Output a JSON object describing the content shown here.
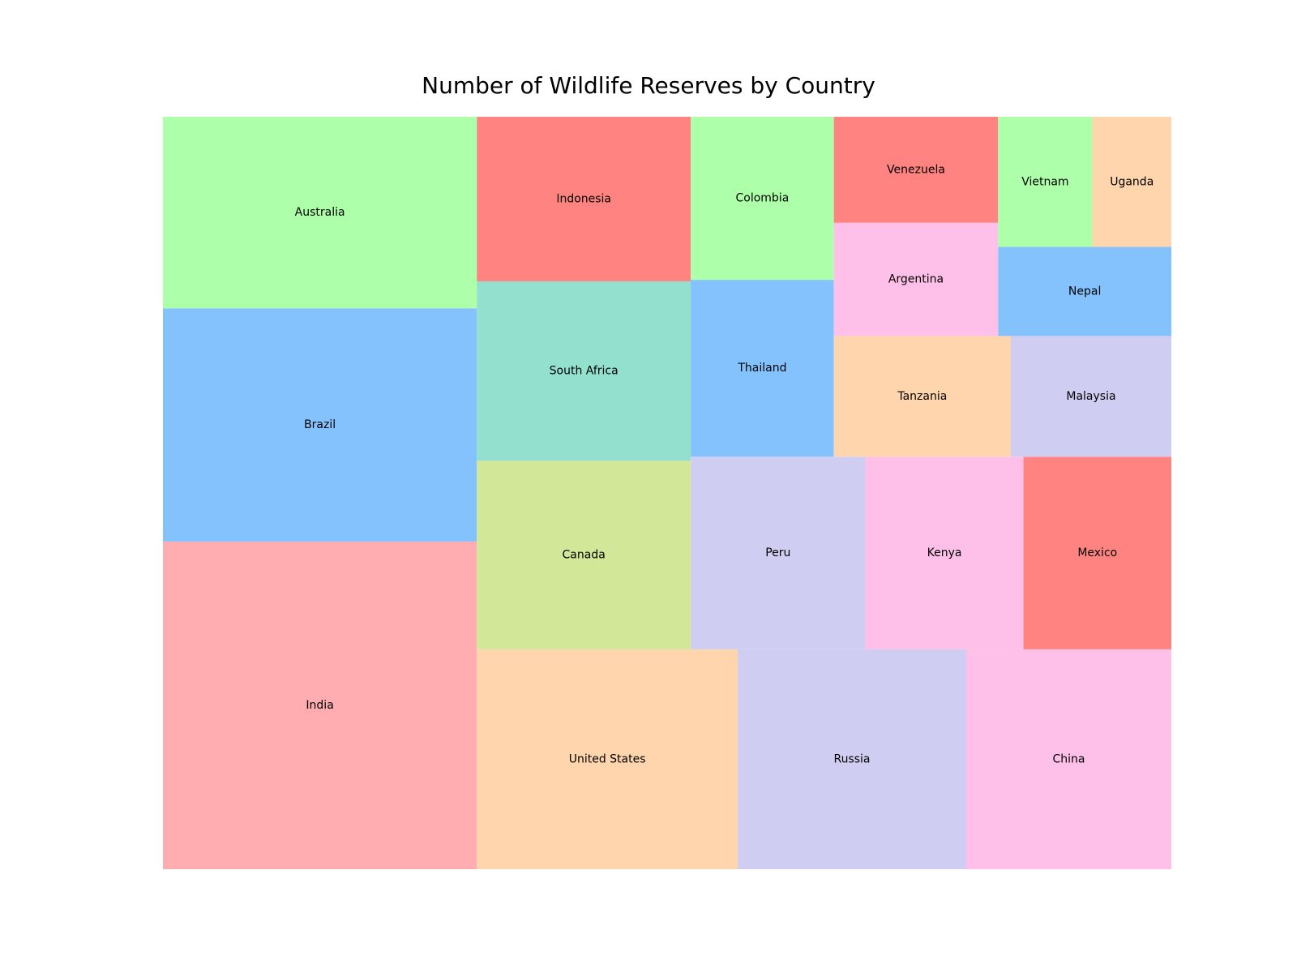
{
  "chart_data": {
    "type": "treemap",
    "title": "Number of Wildlife Reserves by Country",
    "items": [
      {
        "label": "India",
        "value": 260,
        "color": "#ffadb0"
      },
      {
        "label": "Brazil",
        "value": 185,
        "color": "#84c2fd"
      },
      {
        "label": "Australia",
        "value": 152,
        "color": "#adffa9"
      },
      {
        "label": "United States",
        "value": 145,
        "color": "#fed5ad"
      },
      {
        "label": "Russia",
        "value": 127,
        "color": "#cfcef2"
      },
      {
        "label": "China",
        "value": 114,
        "color": "#fec0e8"
      },
      {
        "label": "Canada",
        "value": 102,
        "color": "#d2e798"
      },
      {
        "label": "South Africa",
        "value": 97,
        "color": "#93e0cf"
      },
      {
        "label": "Indonesia",
        "value": 89,
        "color": "#ff8481"
      },
      {
        "label": "Peru",
        "value": 85,
        "color": "#cfcef2"
      },
      {
        "label": "Kenya",
        "value": 77,
        "color": "#fec0e8"
      },
      {
        "label": "Mexico",
        "value": 72,
        "color": "#ff8481"
      },
      {
        "label": "Thailand",
        "value": 64,
        "color": "#84c2fd"
      },
      {
        "label": "Colombia",
        "value": 59,
        "color": "#adffa9"
      },
      {
        "label": "Tanzania",
        "value": 54,
        "color": "#fed5ad"
      },
      {
        "label": "Malaysia",
        "value": 49,
        "color": "#cfcef2"
      },
      {
        "label": "Argentina",
        "value": 47,
        "color": "#fec0e8"
      },
      {
        "label": "Venezuela",
        "value": 44,
        "color": "#ff8481"
      },
      {
        "label": "Nepal",
        "value": 39,
        "color": "#84c2fd"
      },
      {
        "label": "Vietnam",
        "value": 31,
        "color": "#adffa9"
      },
      {
        "label": "Uganda",
        "value": 26,
        "color": "#fed5ad"
      }
    ]
  }
}
